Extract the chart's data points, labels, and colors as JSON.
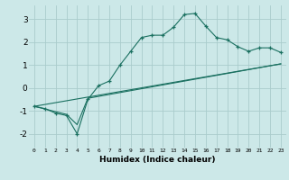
{
  "xlabel": "Humidex (Indice chaleur)",
  "background_color": "#cce8e8",
  "grid_color": "#aacccc",
  "line_color": "#1a7060",
  "xlim": [
    -0.5,
    23.5
  ],
  "ylim": [
    -2.6,
    3.6
  ],
  "yticks": [
    -2,
    -1,
    0,
    1,
    2,
    3
  ],
  "xticks": [
    0,
    1,
    2,
    3,
    4,
    5,
    6,
    7,
    8,
    9,
    10,
    11,
    12,
    13,
    14,
    15,
    16,
    17,
    18,
    19,
    20,
    21,
    22,
    23
  ],
  "curve1_x": [
    0,
    1,
    2,
    3,
    4,
    5,
    6,
    7,
    8,
    9,
    10,
    11,
    12,
    13,
    14,
    15,
    16,
    17,
    18,
    19,
    20,
    21,
    22,
    23
  ],
  "curve1_y": [
    -0.8,
    -0.9,
    -1.1,
    -1.2,
    -2.0,
    -0.5,
    0.1,
    0.3,
    1.0,
    1.6,
    2.2,
    2.3,
    2.3,
    2.65,
    3.2,
    3.25,
    2.7,
    2.2,
    2.1,
    1.8,
    1.6,
    1.75,
    1.75,
    1.55
  ],
  "line2_x": [
    0,
    23
  ],
  "line2_y": [
    -0.8,
    1.05
  ],
  "line3_x": [
    0,
    3,
    4,
    5,
    23
  ],
  "line3_y": [
    -0.8,
    -1.15,
    -1.6,
    -0.45,
    1.05
  ]
}
